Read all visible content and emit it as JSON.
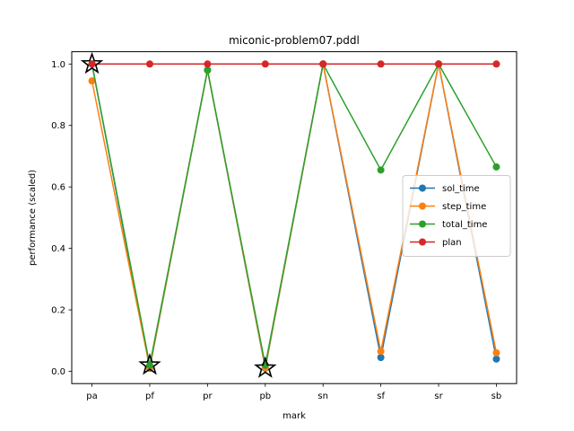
{
  "chart_data": {
    "type": "line",
    "title": "miconic-problem07.pddl",
    "xlabel": "mark",
    "ylabel": "performance (scaled)",
    "categories": [
      "pa",
      "pf",
      "pr",
      "pb",
      "sn",
      "sf",
      "sr",
      "sb"
    ],
    "ylim": [
      -0.04,
      1.04
    ],
    "yticks": [
      0.0,
      0.2,
      0.4,
      0.6,
      0.8,
      1.0
    ],
    "ytick_labels": [
      "0.0",
      "0.2",
      "0.4",
      "0.6",
      "0.8",
      "1.0"
    ],
    "grid": false,
    "legend_placement": "center-right",
    "series": [
      {
        "name": "sol_time",
        "color": "#1f77b4",
        "values": [
          1.0,
          0.01,
          0.98,
          0.01,
          1.0,
          0.045,
          1.0,
          0.04
        ]
      },
      {
        "name": "step_time",
        "color": "#ff7f0e",
        "values": [
          0.945,
          0.012,
          0.98,
          0.012,
          1.0,
          0.065,
          1.0,
          0.06
        ]
      },
      {
        "name": "total_time",
        "color": "#2ca02c",
        "values": [
          1.0,
          0.02,
          0.98,
          0.02,
          1.0,
          0.655,
          1.0,
          0.665
        ]
      },
      {
        "name": "plan",
        "color": "#d62728",
        "values": [
          1.0,
          1.0,
          1.0,
          1.0,
          1.0,
          1.0,
          1.0,
          1.0
        ]
      }
    ],
    "best_markers": [
      {
        "category": "pa",
        "value": 1.0
      },
      {
        "category": "pf",
        "value": 0.02
      },
      {
        "category": "pb",
        "value": 0.01
      }
    ]
  }
}
